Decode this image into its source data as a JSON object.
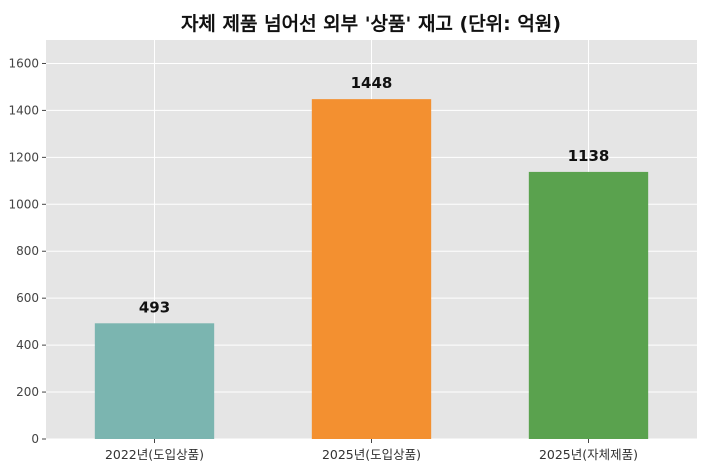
{
  "chart_data": {
    "type": "bar",
    "title": "자체 제품 넘어선 외부 '상품' 재고 (단위: 억원)",
    "xlabel": "",
    "ylabel": "",
    "categories": [
      "2022년(도입상품)",
      "2025년(도입상품)",
      "2025년(자체제품)"
    ],
    "values": [
      493,
      1448,
      1138
    ],
    "colors": [
      "#7bb5b0",
      "#f39030",
      "#5aa24e"
    ],
    "ylim": [
      0,
      1700
    ],
    "yticks": [
      0,
      200,
      400,
      600,
      800,
      1000,
      1200,
      1400,
      1600
    ],
    "grid": true,
    "background": "#e5e5e5"
  }
}
